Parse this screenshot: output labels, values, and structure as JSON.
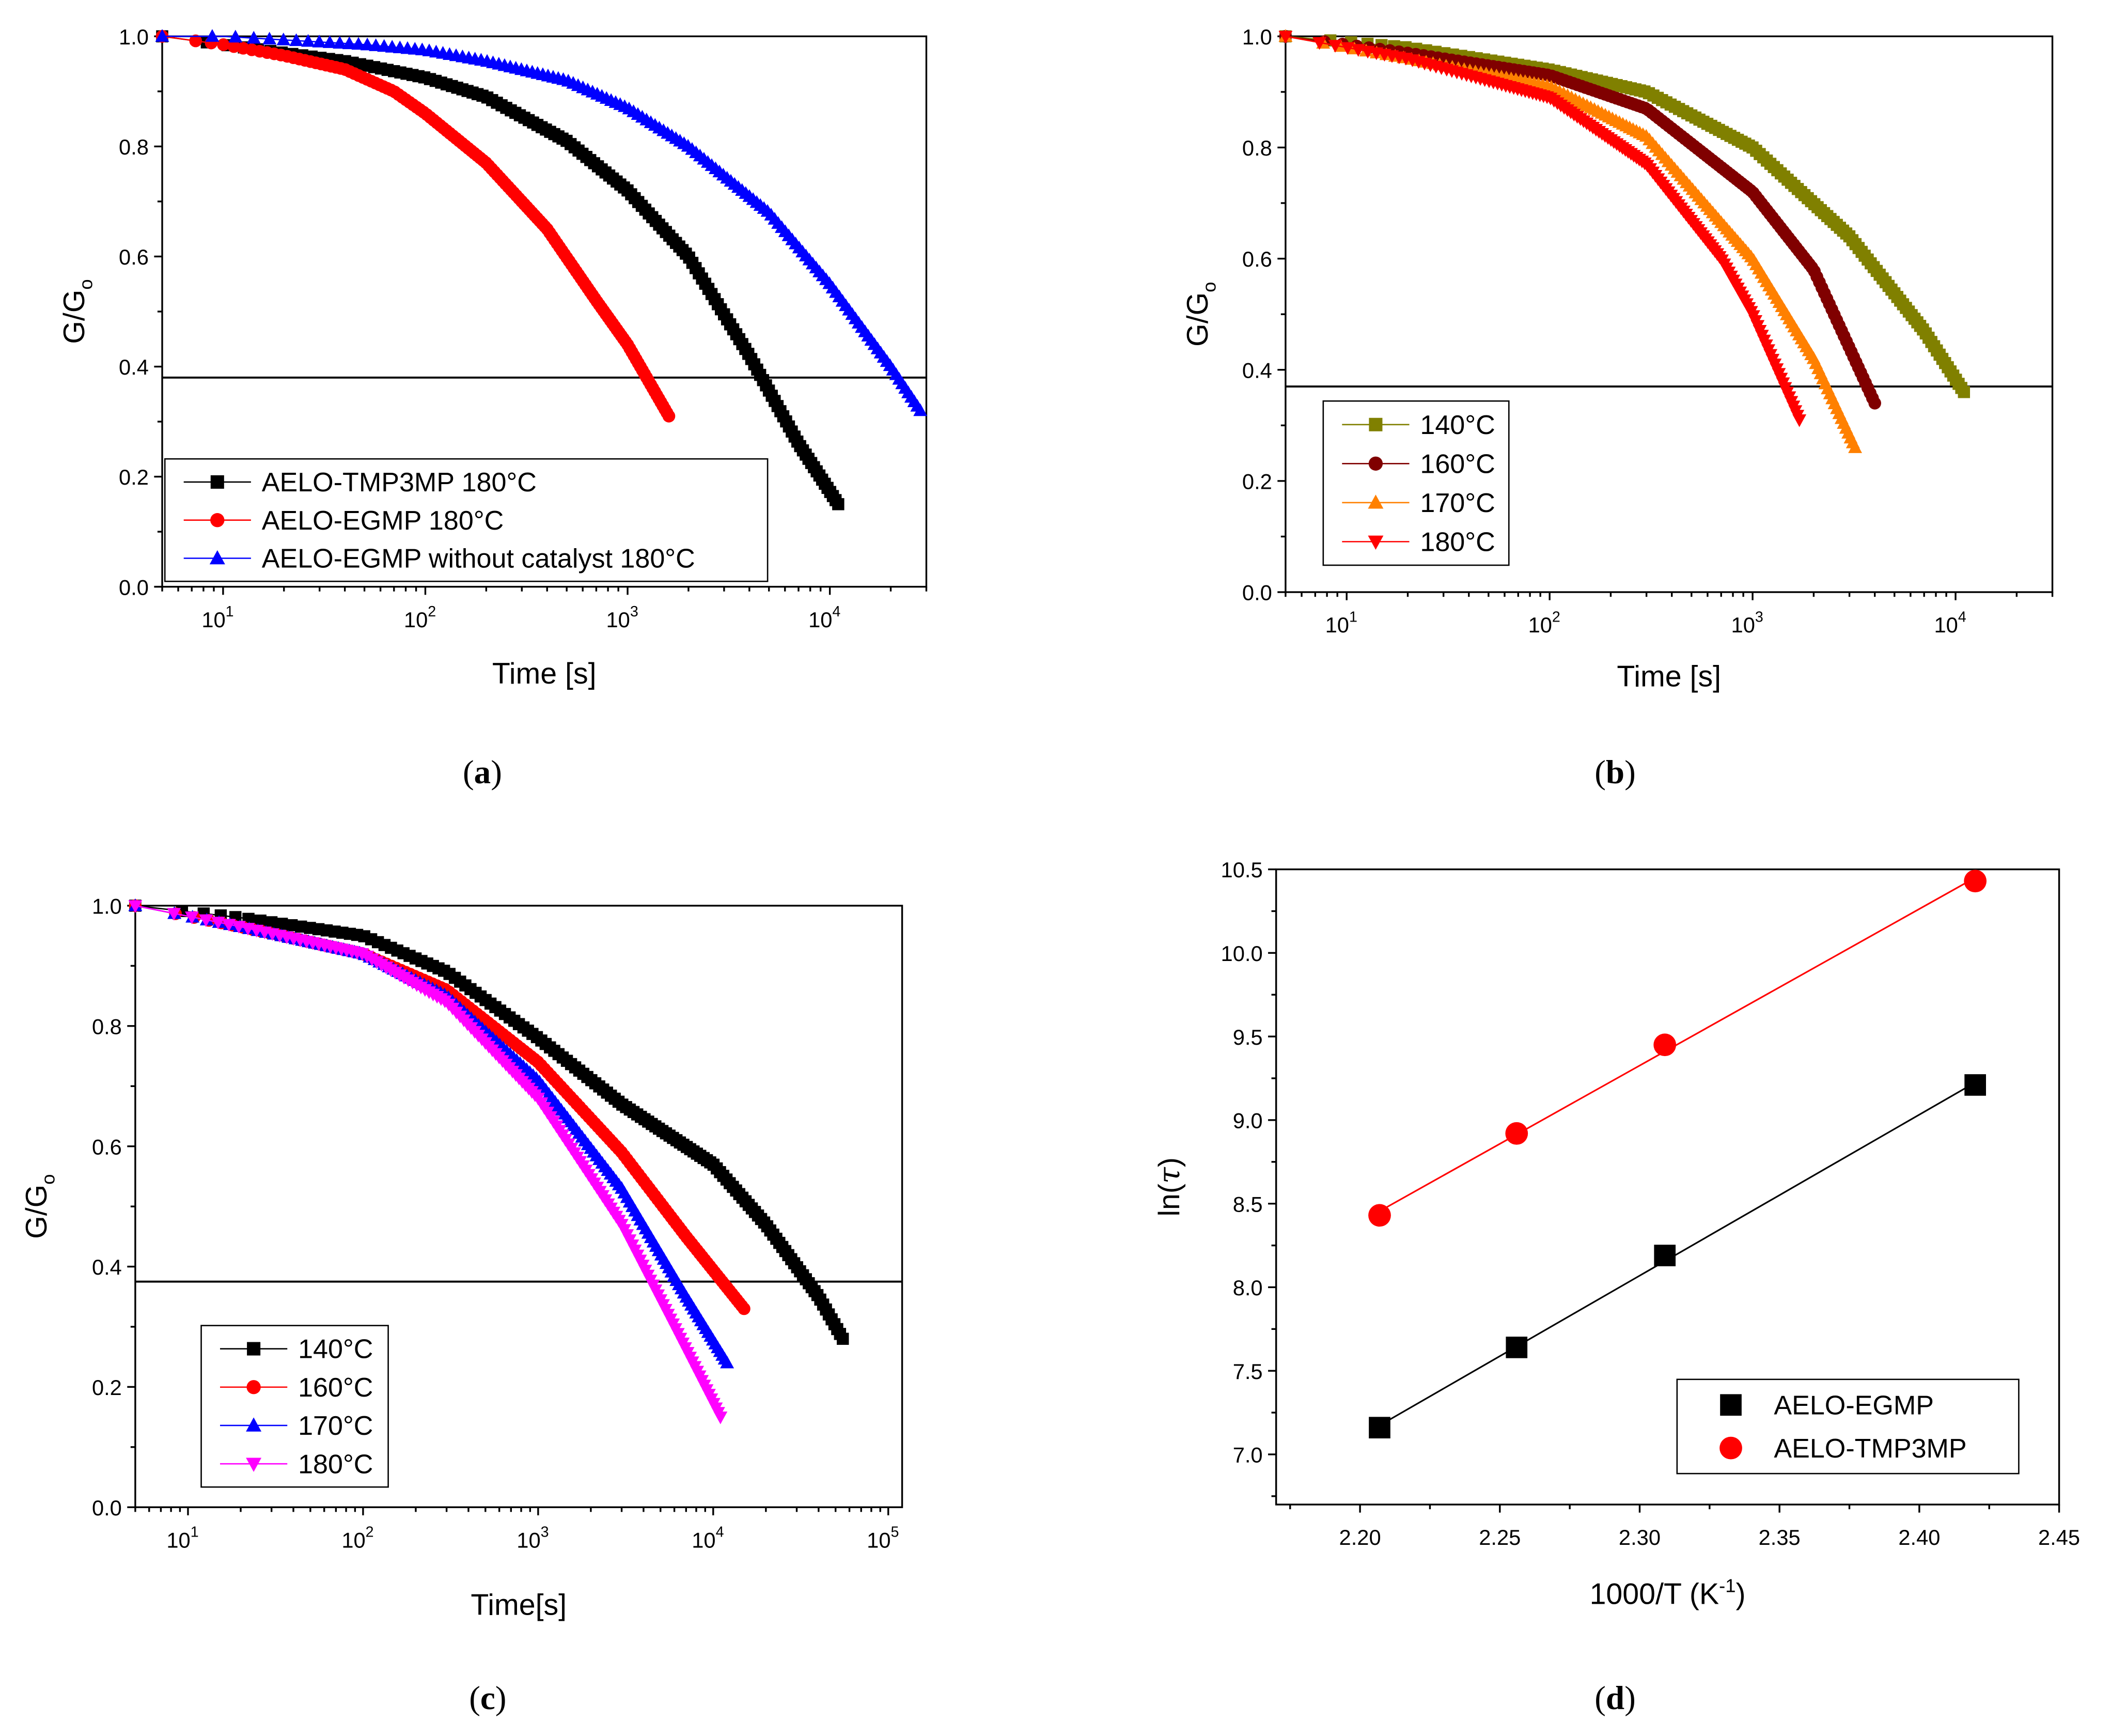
{
  "chart_data": [
    {
      "id": "a",
      "type": "scatter",
      "caption": "a",
      "xscale": "log",
      "xlim": [
        5,
        30000
      ],
      "ylim": [
        0,
        1.0
      ],
      "xtick_exponents": [
        1,
        2,
        3,
        4
      ],
      "yticks": [
        "0.0",
        "0.2",
        "0.4",
        "0.6",
        "0.8",
        "1.0"
      ],
      "xlabel": "Time [s]",
      "ylabel": "G/G",
      "ylabel_sub": "o",
      "reference_line": 0.38,
      "legend_position": "bottom-left",
      "series": [
        {
          "name": "AELO-TMP3MP 180°C",
          "color": "#000000",
          "marker": "square",
          "x": [
            5,
            10,
            20,
            40,
            100,
            200,
            500,
            1000,
            2000,
            4000,
            7000,
            11000
          ],
          "y": [
            1.0,
            0.985,
            0.97,
            0.955,
            0.925,
            0.89,
            0.81,
            0.72,
            0.6,
            0.42,
            0.26,
            0.15
          ]
        },
        {
          "name": "AELO-EGMP 180°C",
          "color": "#ff0000",
          "marker": "circle",
          "x": [
            5,
            10,
            20,
            40,
            70,
            100,
            200,
            400,
            700,
            1000,
            1600
          ],
          "y": [
            1.0,
            0.985,
            0.965,
            0.94,
            0.9,
            0.86,
            0.77,
            0.65,
            0.52,
            0.44,
            0.31
          ]
        },
        {
          "name": "AELO-EGMP without catalyst 180°C",
          "color": "#0000ff",
          "marker": "triangle-up",
          "x": [
            5,
            10,
            50,
            100,
            200,
            500,
            1000,
            2000,
            5000,
            10000,
            20000,
            28000
          ],
          "y": [
            1.0,
            1.0,
            0.985,
            0.975,
            0.955,
            0.92,
            0.87,
            0.8,
            0.68,
            0.55,
            0.4,
            0.32
          ]
        }
      ]
    },
    {
      "id": "b",
      "type": "scatter",
      "caption": "b",
      "xscale": "log",
      "xlim": [
        5,
        30000
      ],
      "ylim": [
        0,
        1.0
      ],
      "xtick_exponents": [
        1,
        2,
        3,
        4
      ],
      "yticks": [
        "0.0",
        "0.2",
        "0.4",
        "0.6",
        "0.8",
        "1.0"
      ],
      "xlabel": "Time [s]",
      "ylabel": "G/G",
      "ylabel_sub": "o",
      "reference_line": 0.37,
      "legend_position": "bottom-left",
      "series": [
        {
          "name": "140°C",
          "color": "#808000",
          "marker": "square",
          "x": [
            5,
            20,
            100,
            300,
            1000,
            3000,
            7000,
            11000
          ],
          "y": [
            1.0,
            0.98,
            0.94,
            0.9,
            0.8,
            0.64,
            0.47,
            0.36
          ]
        },
        {
          "name": "160°C",
          "color": "#800000",
          "marker": "circle",
          "x": [
            5,
            20,
            100,
            300,
            1000,
            2000,
            4000
          ],
          "y": [
            1.0,
            0.97,
            0.93,
            0.87,
            0.72,
            0.58,
            0.34
          ]
        },
        {
          "name": "170°C",
          "color": "#ff8000",
          "marker": "triangle-up",
          "x": [
            5,
            20,
            100,
            300,
            1000,
            2000,
            3200
          ],
          "y": [
            1.0,
            0.96,
            0.91,
            0.82,
            0.6,
            0.42,
            0.26
          ]
        },
        {
          "name": "180°C",
          "color": "#ff0000",
          "marker": "triangle-down",
          "x": [
            5,
            20,
            100,
            300,
            700,
            1000,
            1700
          ],
          "y": [
            1.0,
            0.96,
            0.89,
            0.77,
            0.6,
            0.5,
            0.31
          ]
        }
      ]
    },
    {
      "id": "c",
      "type": "scatter",
      "caption": "c",
      "xscale": "log",
      "xlim": [
        5,
        120000
      ],
      "ylim": [
        0,
        1.0
      ],
      "xtick_exponents": [
        1,
        2,
        3,
        4,
        5
      ],
      "yticks": [
        "0.0",
        "0.2",
        "0.4",
        "0.6",
        "0.8",
        "1.0"
      ],
      "xlabel": "Time[s]",
      "ylabel": "G/G",
      "ylabel_sub": "o",
      "reference_line": 0.375,
      "legend_position": "bottom-left",
      "series": [
        {
          "name": "140°C",
          "color": "#000000",
          "marker": "square",
          "x": [
            5,
            20,
            100,
            300,
            1000,
            3000,
            10000,
            20000,
            40000,
            55000
          ],
          "y": [
            1.0,
            0.98,
            0.95,
            0.89,
            0.78,
            0.67,
            0.57,
            0.47,
            0.35,
            0.28
          ]
        },
        {
          "name": "160°C",
          "color": "#ff0000",
          "marker": "circle",
          "x": [
            5,
            20,
            100,
            300,
            1000,
            3000,
            7000,
            15000
          ],
          "y": [
            1.0,
            0.965,
            0.92,
            0.86,
            0.74,
            0.59,
            0.45,
            0.33
          ]
        },
        {
          "name": "170°C",
          "color": "#0000ff",
          "marker": "triangle-up",
          "x": [
            5,
            20,
            100,
            300,
            1000,
            3000,
            7000,
            12000
          ],
          "y": [
            1.0,
            0.965,
            0.92,
            0.85,
            0.71,
            0.53,
            0.35,
            0.24
          ]
        },
        {
          "name": "180°C",
          "color": "#ff00ff",
          "marker": "triangle-down",
          "x": [
            5,
            20,
            100,
            300,
            1000,
            3000,
            6000,
            11000
          ],
          "y": [
            1.0,
            0.965,
            0.92,
            0.84,
            0.68,
            0.47,
            0.3,
            0.15
          ]
        }
      ]
    },
    {
      "id": "d",
      "type": "scatter",
      "caption": "d",
      "xscale": "linear",
      "xlim": [
        2.17,
        2.45
      ],
      "ylim": [
        6.7,
        10.5
      ],
      "xticks": [
        "2.20",
        "2.25",
        "2.30",
        "2.35",
        "2.40",
        "2.45"
      ],
      "yticks": [
        "7.0",
        "7.5",
        "8.0",
        "8.5",
        "9.0",
        "9.5",
        "10.0",
        "10.5"
      ],
      "xlabel_parts": [
        "1000/T (K",
        "-1",
        ")"
      ],
      "ylabel_parts": [
        "ln(",
        "τ",
        ")"
      ],
      "legend_position": "bottom-right",
      "fit_lines": true,
      "series": [
        {
          "name": "AELO-EGMP",
          "color": "#000000",
          "marker": "square",
          "x": [
            2.207,
            2.256,
            2.309,
            2.42
          ],
          "y": [
            7.16,
            7.64,
            8.19,
            9.21
          ]
        },
        {
          "name": "AELO-TMP3MP",
          "color": "#ff0000",
          "marker": "circle",
          "x": [
            2.207,
            2.256,
            2.309,
            2.42
          ],
          "y": [
            8.43,
            8.92,
            9.45,
            10.43
          ]
        }
      ]
    }
  ]
}
